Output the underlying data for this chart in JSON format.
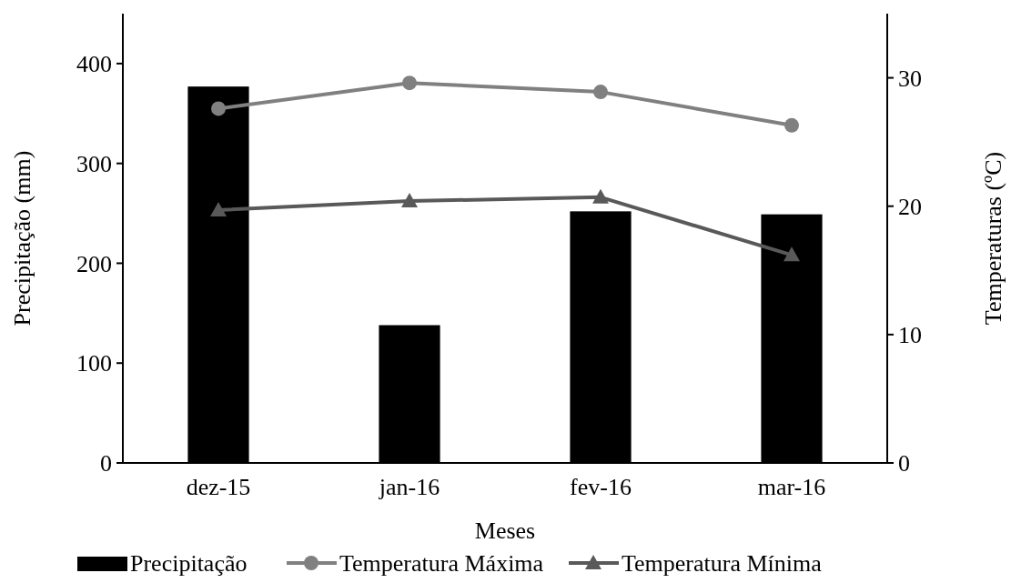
{
  "chart_data": {
    "type": "bar",
    "xlabel": "Meses",
    "ylabel": "Precipitação (mm)",
    "y2label": "Temperaturas (ºC)",
    "categories": [
      "dez-15",
      "jan-16",
      "fev-16",
      "mar-16"
    ],
    "series": [
      {
        "name": "Precipitação",
        "color": "#000000",
        "values": [
          377,
          138,
          252,
          249
        ]
      },
      {
        "name": "Temperatura Máxima",
        "type": "line",
        "axis": "y2",
        "color": "#808080",
        "marker": "circle",
        "values": [
          27.6,
          29.6,
          28.9,
          26.3
        ]
      },
      {
        "name": "Temperatura Mínima",
        "type": "line",
        "axis": "y2",
        "color": "#595959",
        "marker": "triangle",
        "values": [
          19.7,
          20.4,
          20.7,
          16.2
        ]
      }
    ],
    "ylim": [
      0,
      450
    ],
    "yticks": [
      0,
      100,
      200,
      300,
      400
    ],
    "y2lim": [
      0,
      35
    ],
    "y2ticks": [
      0,
      10,
      20,
      30
    ],
    "legend": "bottom",
    "grid": false
  }
}
